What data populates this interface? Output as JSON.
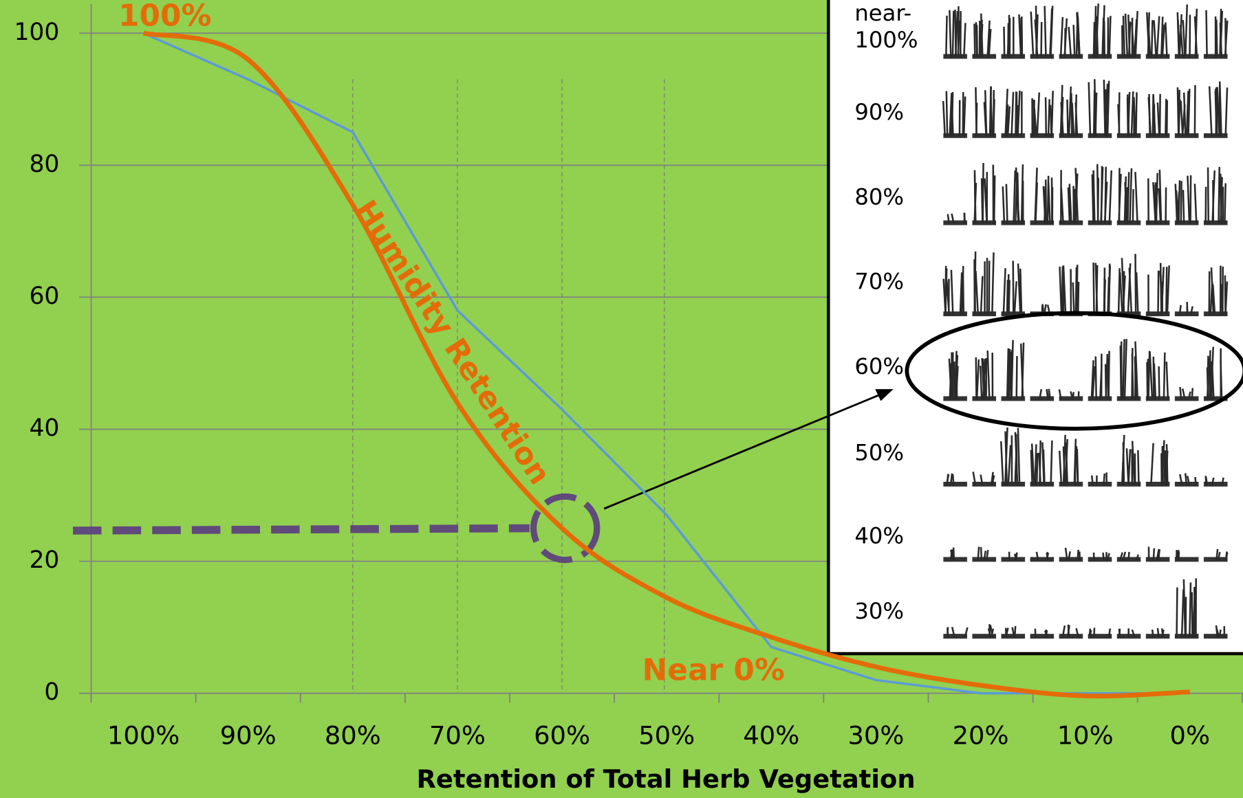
{
  "chart_data": {
    "type": "line",
    "categories": [
      "100%",
      "90%",
      "80%",
      "70%",
      "60%",
      "50%",
      "40%",
      "30%",
      "20%",
      "10%",
      "0%"
    ],
    "series": [
      {
        "color": "#5b9bd5",
        "values": [
          100,
          93,
          85,
          58,
          43,
          27,
          7,
          2,
          0,
          0,
          0
        ]
      },
      {
        "color": "#e36c09",
        "values": [
          100,
          96,
          74,
          44,
          25,
          14.5,
          8.5,
          4,
          1.2,
          -0.4,
          0.2
        ]
      }
    ],
    "ylim": [
      0,
      105
    ],
    "yticks": [
      0,
      20,
      40,
      60,
      80,
      100
    ],
    "grid": true,
    "x_label": "Retention of Total Herb Vegetation",
    "reference_line": {
      "value": 25,
      "color": "#604a7b"
    },
    "annotations": [
      "100%",
      "Humidity Retention",
      "Near 0%"
    ]
  },
  "inset": {
    "labels": [
      [
        "near-",
        "100%"
      ],
      [
        "90%"
      ],
      [
        "80%"
      ],
      [
        "70%"
      ],
      [
        "60%"
      ],
      [
        "50%"
      ],
      [
        "40%"
      ],
      [
        "30%"
      ]
    ]
  }
}
